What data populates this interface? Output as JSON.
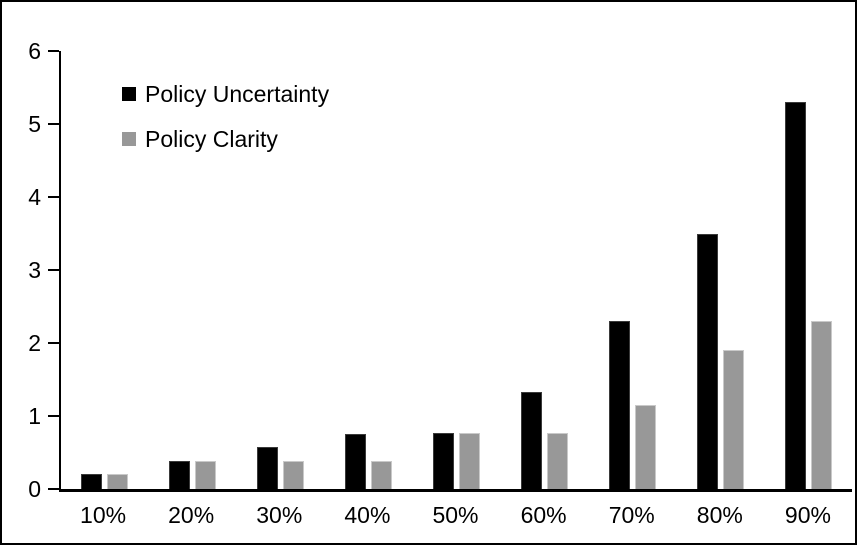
{
  "chart_data": {
    "type": "bar",
    "categories": [
      "10%",
      "20%",
      "30%",
      "40%",
      "50%",
      "60%",
      "70%",
      "80%",
      "90%"
    ],
    "series": [
      {
        "name": "Policy Uncertainty",
        "color": "#000000",
        "edge_color": "#3a3a3a",
        "values": [
          0.2,
          0.38,
          0.57,
          0.75,
          0.77,
          1.33,
          2.3,
          3.5,
          5.3
        ]
      },
      {
        "name": "Policy Clarity",
        "color": "#989898",
        "edge_color": "#c9c9c9",
        "values": [
          0.2,
          0.38,
          0.38,
          0.38,
          0.77,
          0.77,
          1.15,
          1.9,
          2.3
        ]
      }
    ],
    "ylim": [
      0,
      6
    ],
    "yticks": [
      0,
      1,
      2,
      3,
      4,
      5,
      6
    ],
    "ytick_labels": [
      "0",
      "1",
      "2",
      "3",
      "4",
      "5",
      "6"
    ],
    "grid": false,
    "legend_position": "top-left",
    "frame_border_color": "#000000",
    "background_color": "#ffffff"
  }
}
